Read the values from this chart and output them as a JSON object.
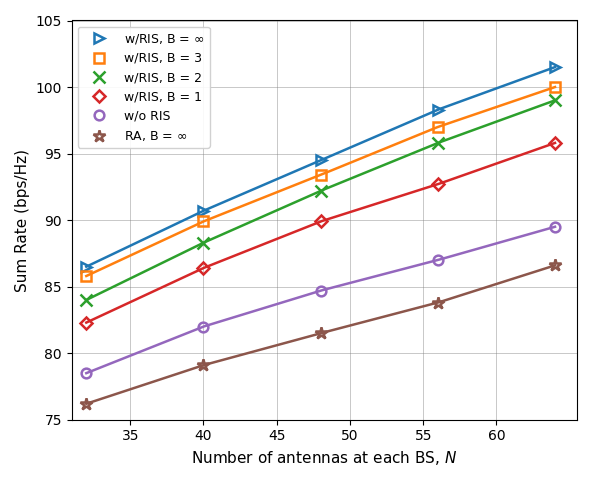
{
  "series": [
    {
      "label": "w/RIS, B = $\\infty$",
      "color": "#1f77b4",
      "marker": ">",
      "x": [
        32,
        40,
        48,
        56,
        64
      ],
      "y": [
        86.5,
        90.7,
        94.5,
        98.3,
        101.5
      ],
      "line_x": [
        32,
        64
      ],
      "line_y": [
        86.5,
        101.5
      ]
    },
    {
      "label": "w/RIS, B = 3",
      "color": "#ff7f0e",
      "marker": "s",
      "x": [
        32,
        40,
        48,
        56,
        64
      ],
      "y": [
        85.8,
        89.9,
        93.4,
        97.0,
        100.0
      ],
      "line_x": [
        32,
        64
      ],
      "line_y": [
        85.8,
        100.0
      ]
    },
    {
      "label": "w/RIS, B = 2",
      "color": "#2ca02c",
      "marker": "x",
      "x": [
        32,
        40,
        48,
        56,
        64
      ],
      "y": [
        84.0,
        88.3,
        92.2,
        95.8,
        99.0
      ],
      "line_x": [
        32,
        64
      ],
      "line_y": [
        84.0,
        99.0
      ]
    },
    {
      "label": "w/RIS, B = 1",
      "color": "#d62728",
      "marker": "D",
      "x": [
        32,
        40,
        48,
        56,
        64
      ],
      "y": [
        82.3,
        86.4,
        89.9,
        92.7,
        95.8
      ],
      "line_x": [
        32,
        64
      ],
      "line_y": [
        82.3,
        95.8
      ]
    },
    {
      "label": "w/o RIS",
      "color": "#9467bd",
      "marker": "o",
      "x": [
        32,
        40,
        48,
        56,
        64
      ],
      "y": [
        78.5,
        82.0,
        84.7,
        87.0,
        89.5
      ],
      "line_x": [
        32,
        64
      ],
      "line_y": [
        78.5,
        89.5
      ]
    },
    {
      "label": "RA, B = $\\infty$",
      "color": "#8c564b",
      "marker": "*",
      "x": [
        32,
        40,
        48,
        56,
        64
      ],
      "y": [
        76.2,
        79.1,
        81.5,
        83.8,
        86.6
      ],
      "line_x": [
        32,
        64
      ],
      "line_y": [
        76.2,
        86.6
      ]
    }
  ],
  "xlim": [
    31,
    65.5
  ],
  "ylim": [
    75,
    105
  ],
  "xticks": [
    35,
    40,
    45,
    50,
    55,
    60
  ],
  "yticks": [
    75,
    80,
    85,
    90,
    95,
    100,
    105
  ],
  "xlabel": "Number of antennas at each BS, $N$",
  "ylabel": "Sum Rate (bps/Hz)",
  "marker_sizes": {
    ">": 7,
    "s": 7,
    "x": 9,
    "D": 6,
    "o": 7,
    "*": 9
  },
  "figsize": [
    5.92,
    4.82
  ],
  "dpi": 100
}
